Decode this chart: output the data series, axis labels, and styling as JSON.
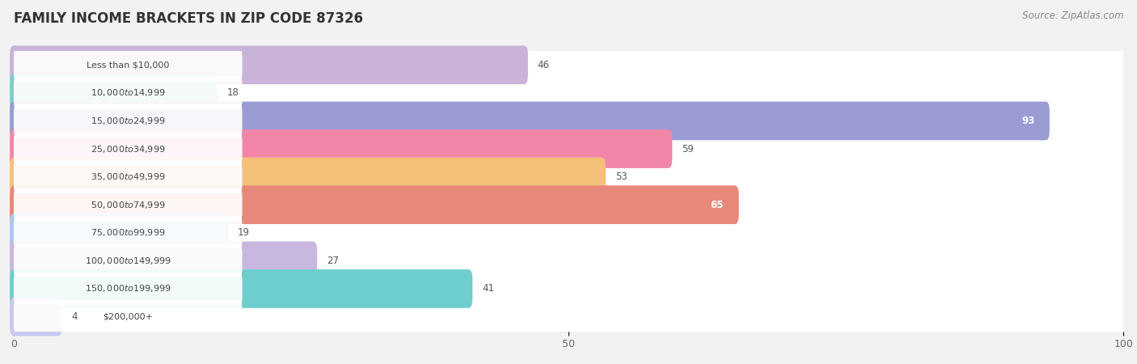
{
  "title": "FAMILY INCOME BRACKETS IN ZIP CODE 87326",
  "source": "Source: ZipAtlas.com",
  "categories": [
    "Less than $10,000",
    "$10,000 to $14,999",
    "$15,000 to $24,999",
    "$25,000 to $34,999",
    "$35,000 to $49,999",
    "$50,000 to $74,999",
    "$75,000 to $99,999",
    "$100,000 to $149,999",
    "$150,000 to $199,999",
    "$200,000+"
  ],
  "values": [
    46,
    18,
    93,
    59,
    53,
    65,
    19,
    27,
    41,
    4
  ],
  "bar_colors": [
    "#c9b3d9",
    "#7ececa",
    "#9b9bd4",
    "#f286a8",
    "#f5c07a",
    "#e8887a",
    "#a8c8f0",
    "#c8b8e0",
    "#6ecece",
    "#c8c8f0"
  ],
  "value_inside": [
    false,
    false,
    true,
    false,
    false,
    true,
    false,
    false,
    false,
    false
  ],
  "value_inside_color": [
    "#555555",
    "#555555",
    "#ffffff",
    "#555555",
    "#555555",
    "#ffffff",
    "#555555",
    "#555555",
    "#555555",
    "#555555"
  ],
  "xlim": [
    0,
    100
  ],
  "xticks": [
    0,
    50,
    100
  ],
  "background_color": "#f2f2f2",
  "row_bg_color": "#ffffff",
  "title_fontsize": 12,
  "source_fontsize": 8.5,
  "label_fontsize": 8,
  "value_fontsize": 8.5
}
